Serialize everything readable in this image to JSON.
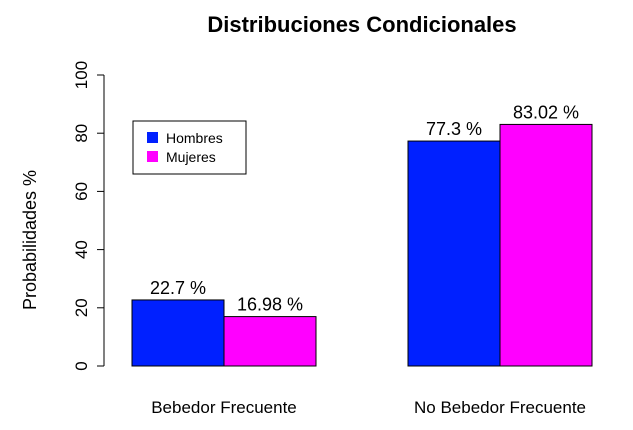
{
  "chart_data": {
    "type": "bar",
    "title": "Distribuciones Condicionales",
    "xlabel": "",
    "ylabel": "Probabilidades %",
    "ylim": [
      0,
      100
    ],
    "yticks": [
      "0",
      "20",
      "40",
      "60",
      "80",
      "100"
    ],
    "categories": [
      "Bebedor Frecuente",
      "No Bebedor Frecuente"
    ],
    "series": [
      {
        "name": "Hombres",
        "color": "#0020ff",
        "values": [
          22.7,
          77.3
        ],
        "labels": [
          "22.7 %",
          "77.3 %"
        ]
      },
      {
        "name": "Mujeres",
        "color": "#ff00ff",
        "values": [
          16.98,
          83.02
        ],
        "labels": [
          "16.98 %",
          "83.02 %"
        ]
      }
    ],
    "grid": false,
    "legend": "top-left"
  }
}
